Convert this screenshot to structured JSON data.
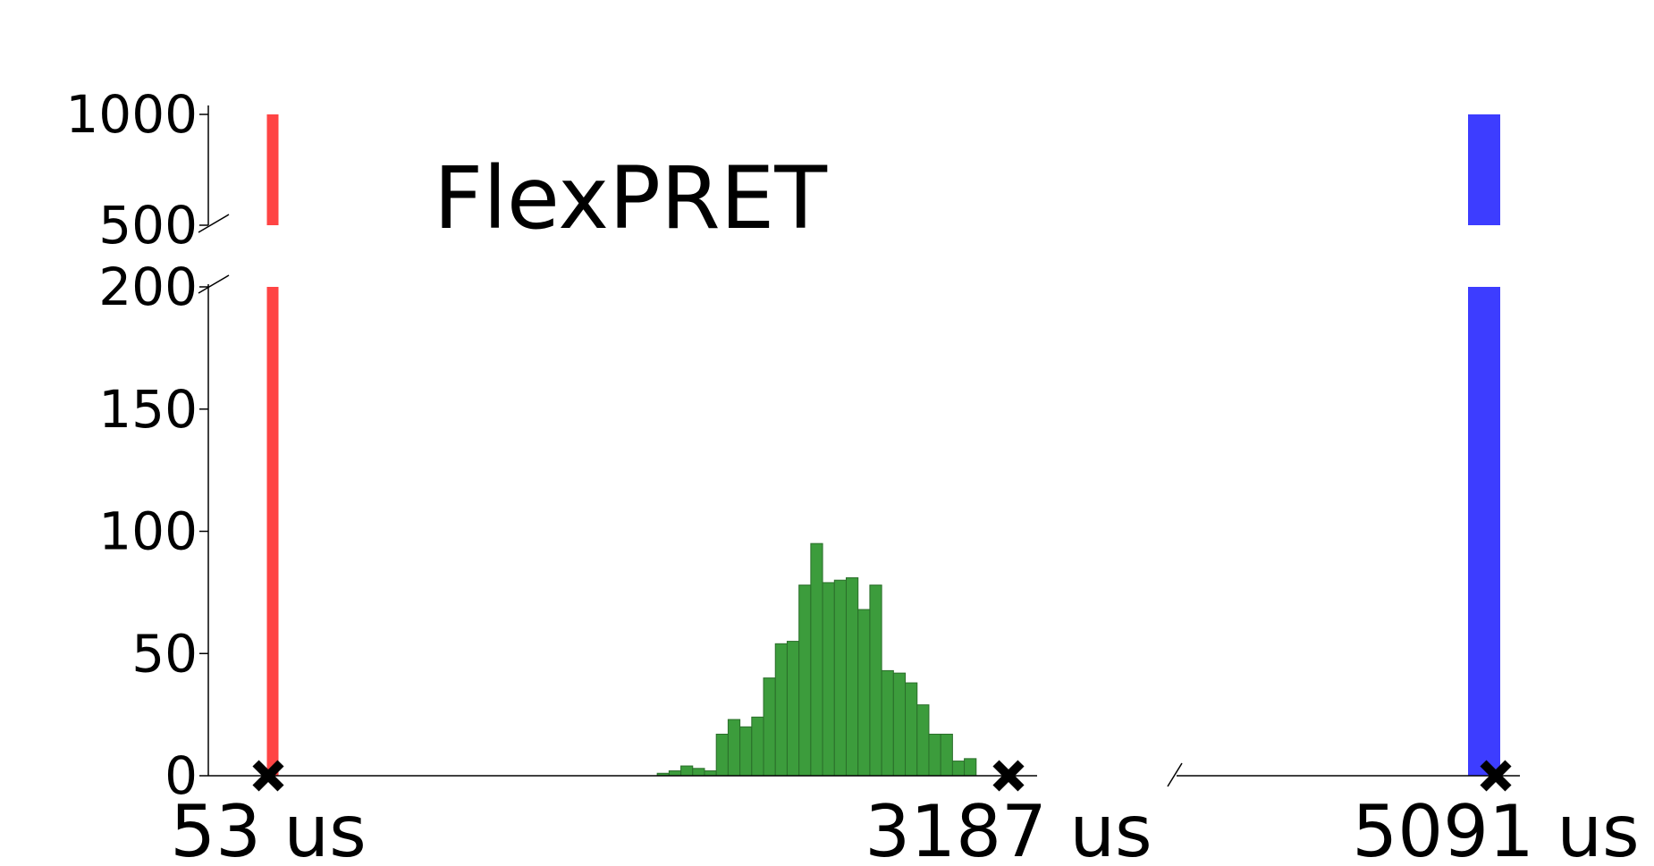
{
  "chart_data": {
    "type": "bar",
    "title": "FlexPRET",
    "xlabel": "",
    "ylabel": "",
    "y_axis": {
      "broken": true,
      "lower_ylim": [
        0,
        200
      ],
      "upper_ylim": [
        500,
        1000
      ],
      "lower_ticks": [
        "0",
        "50",
        "100",
        "150",
        "200"
      ],
      "upper_ticks": [
        "500",
        "1000"
      ]
    },
    "x_axis": {
      "broken": true,
      "break_between": [
        3187,
        5091
      ]
    },
    "markers": [
      {
        "label": "53 us",
        "x": 53
      },
      {
        "label": "3187 us",
        "x": 3187
      },
      {
        "label": "5091 us",
        "x": 5091
      }
    ],
    "series": [
      {
        "color": "#ff4444",
        "x": [
          53
        ],
        "values": [
          1000
        ]
      },
      {
        "color": "#3c9c3c",
        "x_start": 1700,
        "bin_width": 50,
        "values": [
          1,
          2,
          4,
          3,
          2,
          17,
          23,
          20,
          24,
          40,
          54,
          55,
          78,
          95,
          79,
          80,
          81,
          68,
          78,
          43,
          42,
          38,
          29,
          17,
          17,
          6,
          7
        ]
      },
      {
        "color": "#3d3dff",
        "x": [
          5091
        ],
        "values": [
          1000
        ]
      }
    ],
    "grid": false,
    "legend": "none"
  }
}
